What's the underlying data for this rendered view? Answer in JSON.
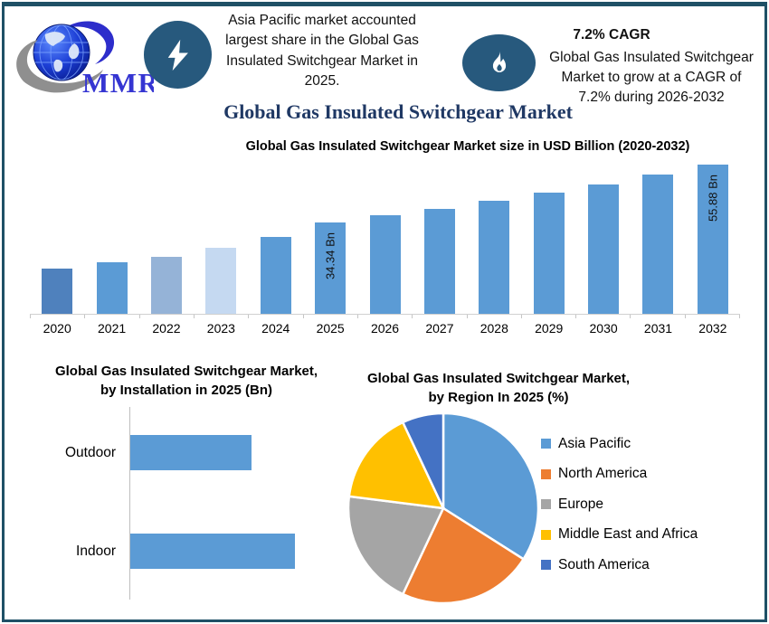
{
  "page": {
    "border_color": "#1f5066",
    "background": "#ffffff"
  },
  "header": {
    "logo": {
      "text": "MMR",
      "icon": "globe-swoosh-logo",
      "text_color": "#3535d2"
    },
    "highlight_left": {
      "icon": "lightning-bolt-icon",
      "badge_color": "#27597d",
      "lines": [
        "Asia Pacific market accounted",
        "largest share in the Global Gas",
        "Insulated Switchgear Market in",
        "2025."
      ]
    },
    "highlight_right": {
      "icon": "flame-icon",
      "badge_color": "#27597d",
      "headline": "7.2% CAGR",
      "lines": [
        "Global Gas Insulated Switchgear",
        "Market to grow at a CAGR of",
        "7.2% during 2026-2032"
      ]
    },
    "main_title": "Global Gas Insulated Switchgear Market",
    "main_title_color": "#1f3864"
  },
  "chart_data": [
    {
      "type": "bar",
      "title": "Global Gas Insulated Switchgear Market size in USD Billion (2020-2032)",
      "categories": [
        "2020",
        "2021",
        "2022",
        "2023",
        "2024",
        "2025",
        "2026",
        "2027",
        "2028",
        "2029",
        "2030",
        "2031",
        "2032"
      ],
      "values": [
        17.0,
        19.3,
        21.5,
        24.7,
        28.7,
        34.34,
        36.81,
        39.46,
        42.3,
        45.35,
        48.61,
        52.11,
        55.88
      ],
      "unit": "USD Bn",
      "ylim": [
        0,
        60
      ],
      "grid": false,
      "legend": false,
      "data_labels": {
        "2025": "34.34 Bn",
        "2032": "55.88 Bn"
      },
      "bar_colors": [
        "#4f81bd",
        "#5b9bd5",
        "#95b3d7",
        "#c5d9f1",
        "#5b9bd5",
        "#5b9bd5",
        "#5b9bd5",
        "#5b9bd5",
        "#5b9bd5",
        "#5b9bd5",
        "#5b9bd5",
        "#5b9bd5",
        "#5b9bd5"
      ]
    },
    {
      "type": "bar",
      "orientation": "horizontal",
      "title": "Global Gas Insulated Switchgear Market, by Installation in 2025 (Bn)",
      "categories": [
        "Outdoor",
        "Indoor"
      ],
      "values": [
        14.6,
        19.8
      ],
      "unit": "USD Bn",
      "grid": false,
      "legend": false,
      "bar_color": "#5b9bd5"
    },
    {
      "type": "pie",
      "title": "Global Gas Insulated Switchgear Market, by Region In 2025 (%)",
      "labels": [
        "Asia Pacific",
        "North America",
        "Europe",
        "Middle East and Africa",
        "South America"
      ],
      "values": [
        34,
        23,
        20,
        16,
        7
      ],
      "unit": "%",
      "colors": [
        "#5b9bd5",
        "#ed7d31",
        "#a5a5a5",
        "#ffc000",
        "#4472c4"
      ],
      "legend_position": "right",
      "start_angle_deg": 0,
      "clockwise": true
    }
  ]
}
